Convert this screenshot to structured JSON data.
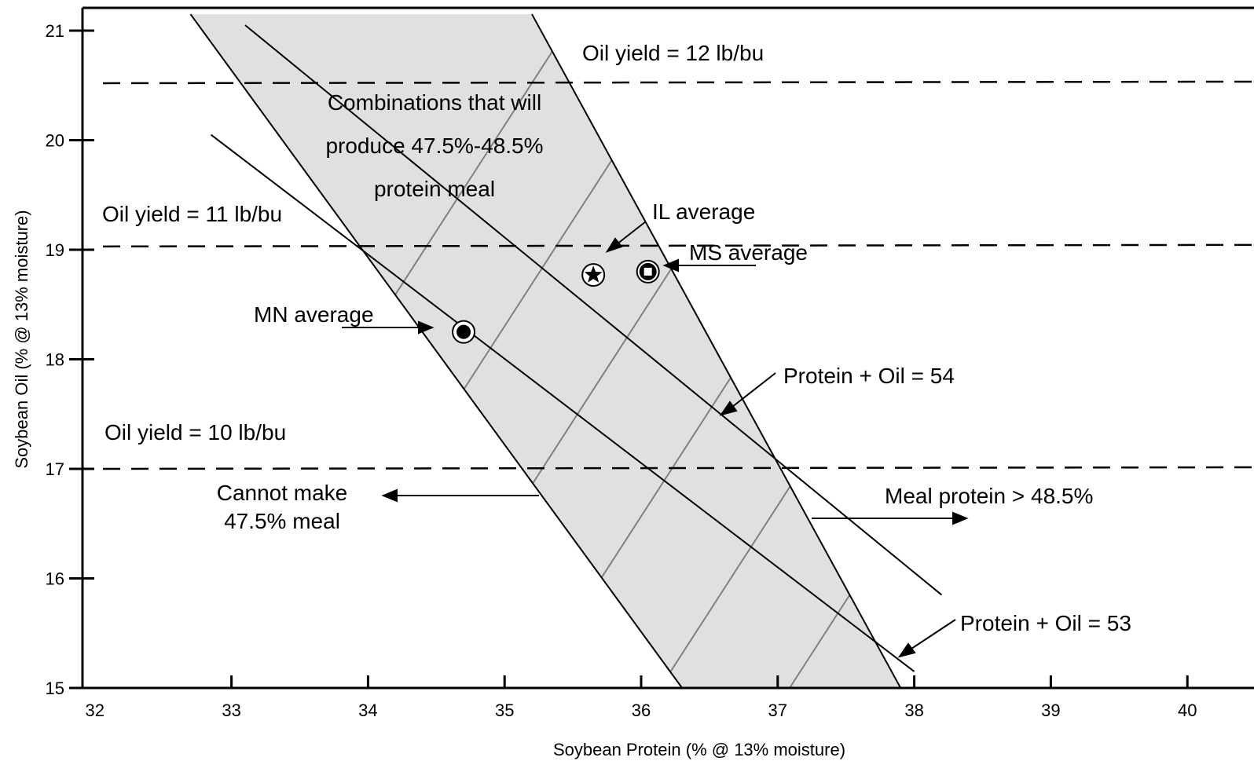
{
  "chart_data": {
    "type": "line",
    "xlabel": "Soybean Protein (% @ 13% moisture)",
    "ylabel": "Soybean Oil (% @ 13% moisture)",
    "xlim": [
      32,
      40.5
    ],
    "ylim": [
      15,
      21.15
    ],
    "x_ticks": [
      "32",
      "33",
      "34",
      "35",
      "36",
      "37",
      "38",
      "39",
      "40"
    ],
    "y_ticks": [
      "15",
      "16",
      "17",
      "18",
      "19",
      "20",
      "21"
    ],
    "colors": {
      "region_fill": "#e0e0e0",
      "hatch": "#808080",
      "line": "#000000"
    },
    "region": {
      "label_lines": [
        "Combinations that will",
        "produce 47.5%-48.5%",
        "protein meal"
      ],
      "polygon": [
        [
          32.7,
          21.15
        ],
        [
          35.2,
          21.15
        ],
        [
          37.9,
          15
        ],
        [
          36.3,
          15
        ]
      ]
    },
    "oil_yield_lines": [
      {
        "label": "Oil yield = 12 lb/bu",
        "y": 20.52
      },
      {
        "label": "Oil yield = 11 lb/bu",
        "y": 19.03
      },
      {
        "label": "Oil yield = 10 lb/bu",
        "y": 17.0
      }
    ],
    "sum_lines": [
      {
        "label": "Protein + Oil = 54",
        "from": [
          33.1,
          21.05
        ],
        "to": [
          38.2,
          15.85
        ]
      },
      {
        "label": "Protein + Oil = 53",
        "from": [
          32.85,
          20.05
        ],
        "to": [
          38.0,
          15.15
        ]
      }
    ],
    "points": [
      {
        "label": "MN average",
        "x": 34.7,
        "y": 18.25,
        "marker": "circle"
      },
      {
        "label": "IL average",
        "x": 35.65,
        "y": 18.77,
        "marker": "star"
      },
      {
        "label": "MS average",
        "x": 36.05,
        "y": 18.8,
        "marker": "square"
      }
    ],
    "annotations": [
      {
        "text_lines": [
          "Cannot make",
          "47.5% meal"
        ]
      },
      {
        "text_lines": [
          "Meal protein > 48.5%"
        ]
      }
    ]
  }
}
